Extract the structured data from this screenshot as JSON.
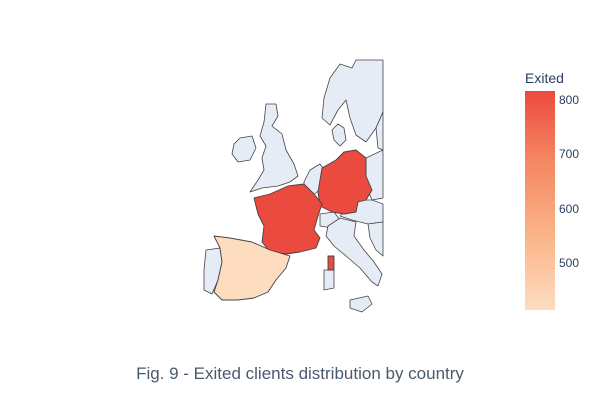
{
  "colorbar": {
    "title": "Exited",
    "ticks": [
      "800",
      "700",
      "600",
      "500"
    ],
    "range": [
      413,
      814
    ],
    "colorscale": [
      "#fddcc0",
      "#fab387",
      "#f4845f",
      "#eb4a3f"
    ]
  },
  "caption": "Fig. 9 - Exited clients distribution by country",
  "chart_data": {
    "type": "choropleth",
    "value_label": "Exited",
    "regions": [
      {
        "name": "France",
        "value": 810
      },
      {
        "name": "Germany",
        "value": 814
      },
      {
        "name": "Spain",
        "value": 413
      }
    ],
    "colors": {
      "background_land": "#e5ecf6",
      "border": "#444444"
    }
  }
}
